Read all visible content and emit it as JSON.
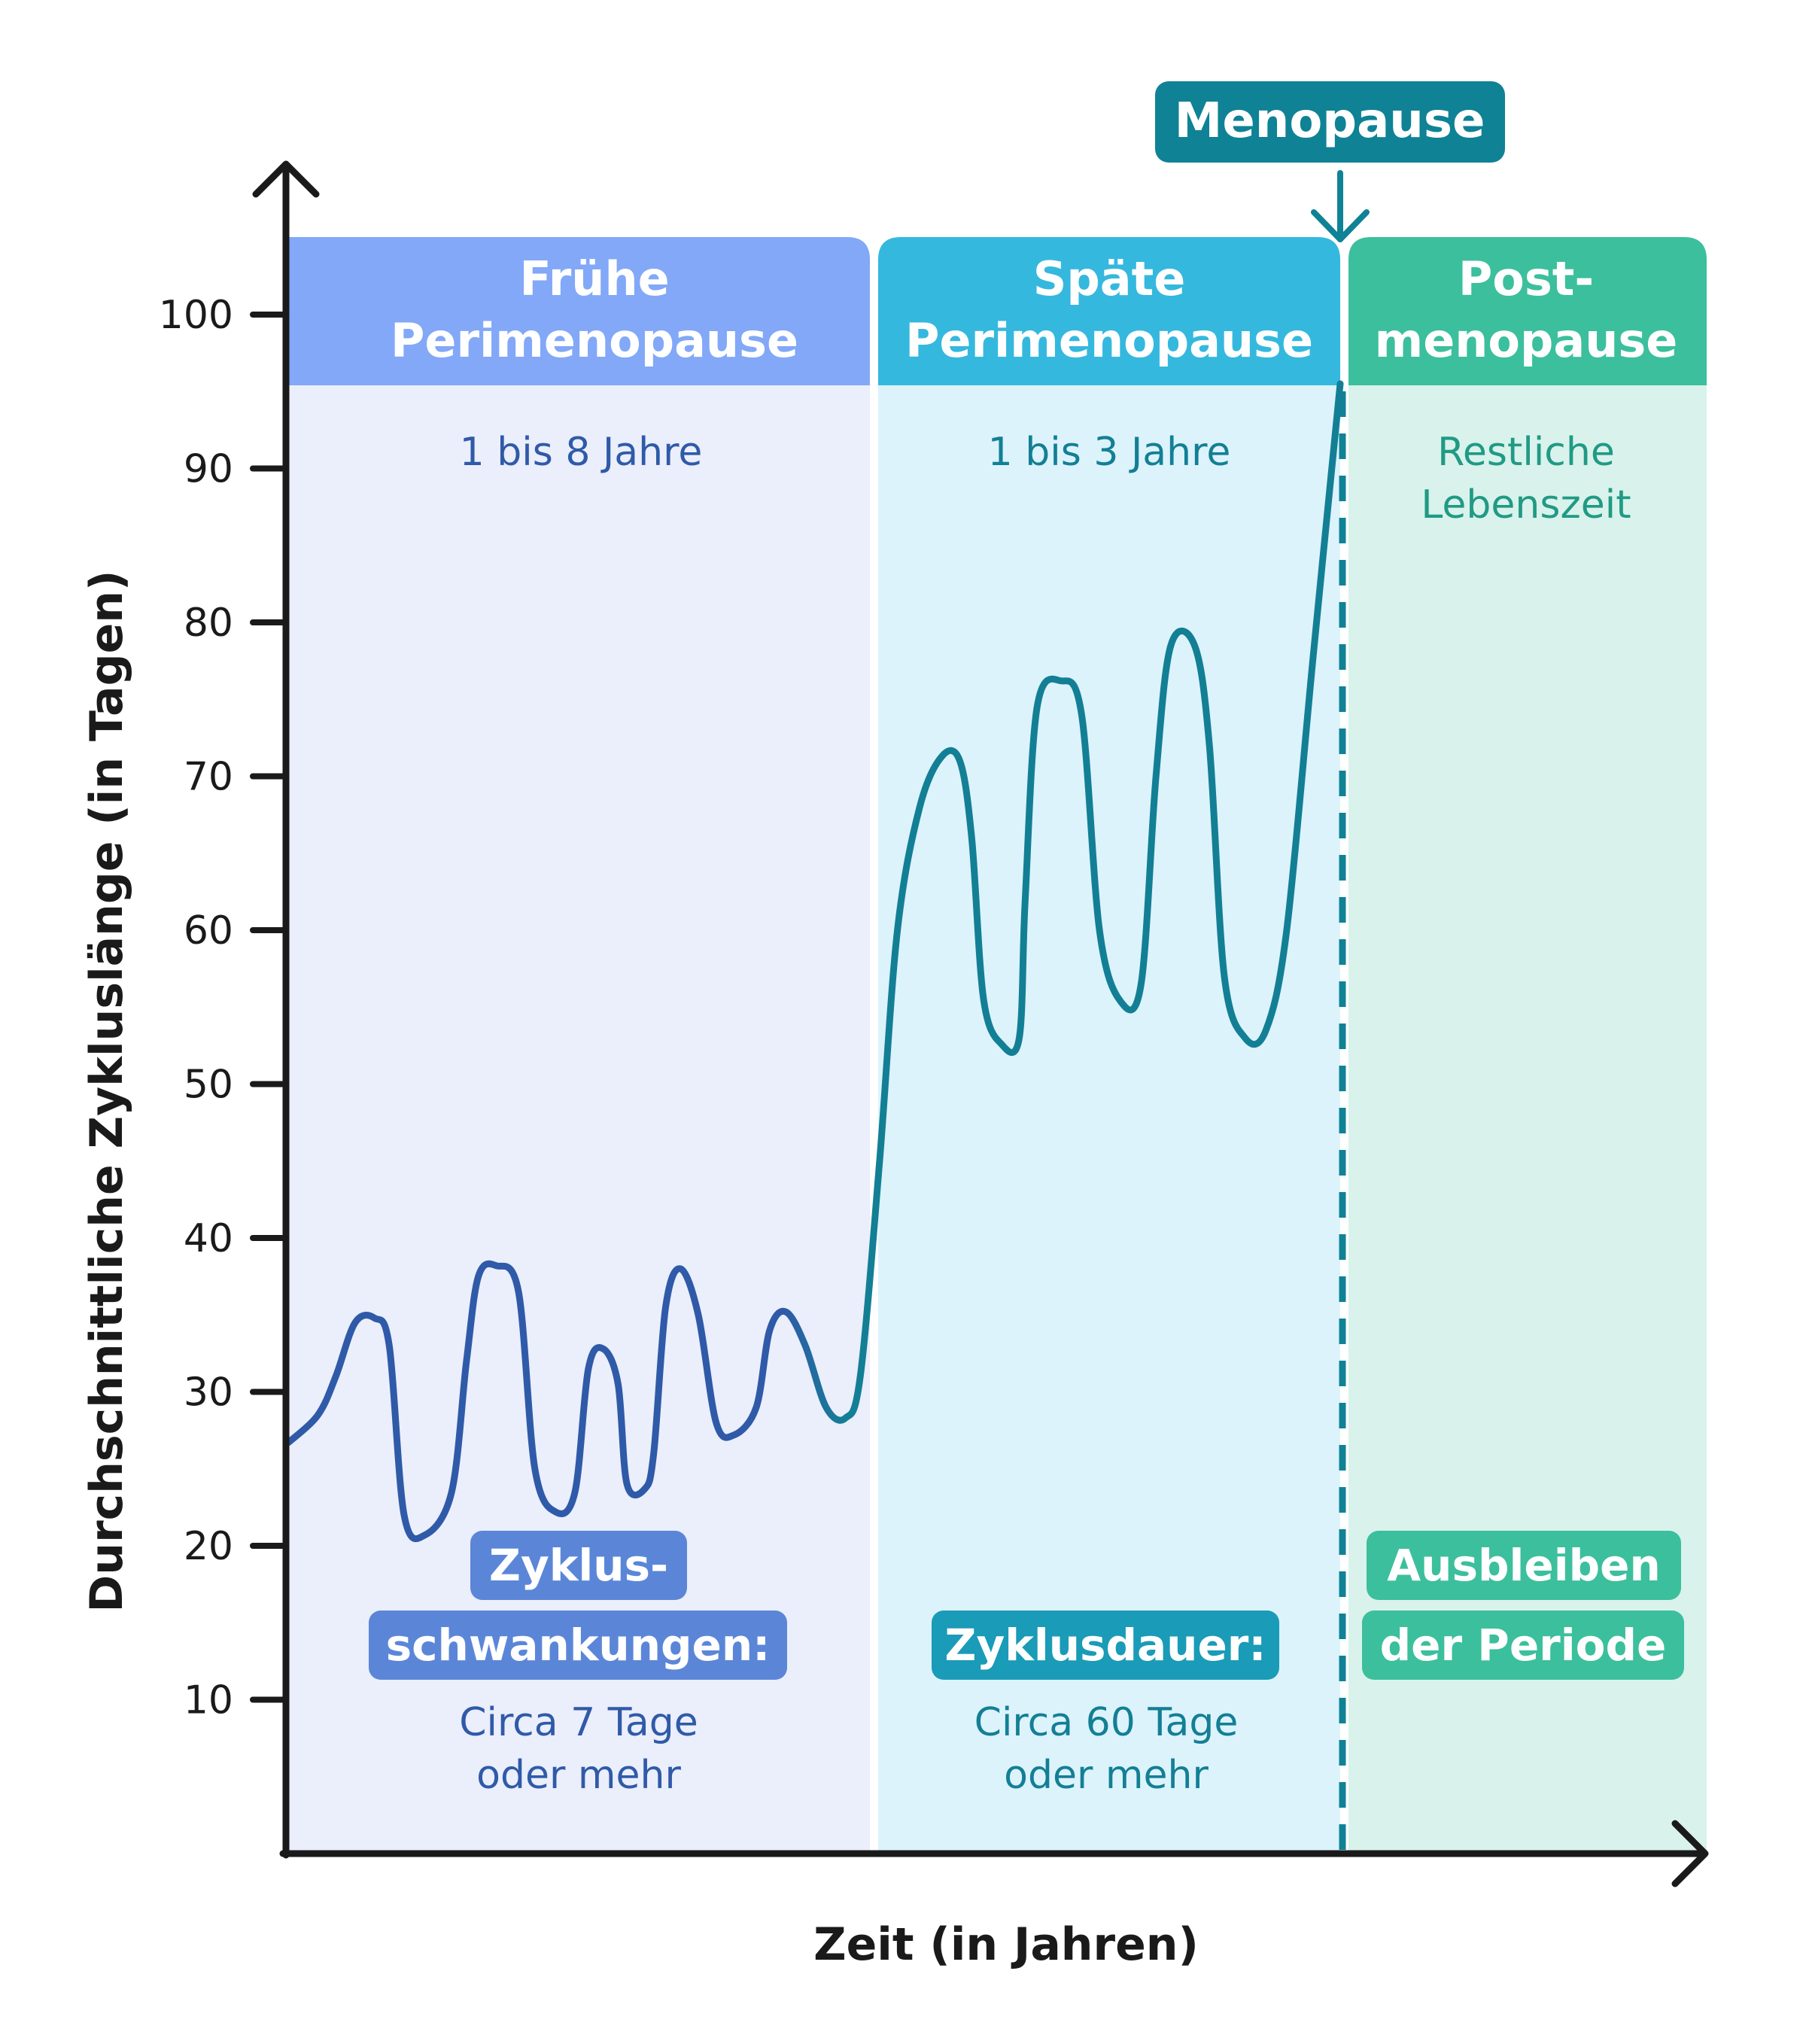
{
  "chart_data": {
    "type": "line",
    "title": "",
    "xlabel": "Zeit (in Jahren)",
    "ylabel": "Durchschnittliche Zykluslänge (in Tagen)",
    "ylim": [
      0,
      100
    ],
    "y_ticks": [
      "10",
      "20",
      "30",
      "40",
      "50",
      "60",
      "70",
      "80",
      "90",
      "100"
    ],
    "grid": false,
    "phases": [
      {
        "name_line1": "Frühe",
        "name_line2": "Perimenopause",
        "duration": "1 bis 8 Jahre",
        "badge_line1": "Zyklus-",
        "badge_line2": "schwankungen:",
        "note_line1": "Circa 7 Tage",
        "note_line2": "oder mehr",
        "header_color": "#82a8f7",
        "bg_color": "#ebeefb",
        "text_color": "#2f5aa8",
        "badge_color": "#5b86d8"
      },
      {
        "name_line1": "Späte",
        "name_line2": "Perimenopause",
        "duration": "1 bis 3 Jahre",
        "badge_line1": "",
        "badge_line2": "Zyklusdauer:",
        "note_line1": "Circa 60 Tage",
        "note_line2": "oder mehr",
        "header_color": "#35b8de",
        "bg_color": "#dcf3fb",
        "text_color": "#137f95",
        "badge_color": "#1a9bb7"
      },
      {
        "name_line1": "Post-",
        "name_line2": "menopause",
        "duration": "Restliche",
        "duration_line2": "Lebenszeit",
        "badge_line1": "Ausbleiben",
        "badge_line2": "der Periode",
        "note_line1": "",
        "note_line2": "",
        "header_color": "#3cbf9c",
        "bg_color": "#d9f2ec",
        "text_color": "#209a84",
        "badge_color": "#3cbf9c"
      }
    ],
    "marker": {
      "label": "Menopause",
      "color": "#0f8295"
    },
    "series": [
      {
        "line_color_early": "#2f5aa8",
        "line_color_late": "#137f95",
        "points": [
          [
            0.0,
            26.7
          ],
          [
            0.02,
            28.5
          ],
          [
            0.032,
            31.0
          ],
          [
            0.045,
            34.5
          ],
          [
            0.058,
            34.8
          ],
          [
            0.068,
            33.0
          ],
          [
            0.078,
            22.0
          ],
          [
            0.092,
            20.7
          ],
          [
            0.11,
            23.5
          ],
          [
            0.12,
            32.0
          ],
          [
            0.128,
            37.5
          ],
          [
            0.14,
            38.2
          ],
          [
            0.155,
            36.5
          ],
          [
            0.166,
            25.0
          ],
          [
            0.18,
            22.2
          ],
          [
            0.193,
            23.5
          ],
          [
            0.202,
            31.5
          ],
          [
            0.212,
            32.8
          ],
          [
            0.222,
            30.5
          ],
          [
            0.228,
            24.0
          ],
          [
            0.24,
            23.7
          ],
          [
            0.246,
            26.0
          ],
          [
            0.254,
            35.5
          ],
          [
            0.264,
            38.0
          ],
          [
            0.276,
            35.0
          ],
          [
            0.288,
            28.0
          ],
          [
            0.3,
            27.2
          ],
          [
            0.315,
            29.0
          ],
          [
            0.324,
            34.0
          ],
          [
            0.335,
            35.2
          ],
          [
            0.348,
            33.0
          ],
          [
            0.362,
            29.0
          ],
          [
            0.375,
            28.3
          ],
          [
            0.385,
            31.0
          ],
          [
            0.398,
            45.0
          ],
          [
            0.41,
            60.0
          ],
          [
            0.425,
            68.0
          ],
          [
            0.44,
            71.3
          ],
          [
            0.452,
            71.0
          ],
          [
            0.46,
            66.0
          ],
          [
            0.468,
            55.5
          ],
          [
            0.48,
            52.6
          ],
          [
            0.492,
            53.0
          ],
          [
            0.496,
            62.0
          ],
          [
            0.504,
            74.5
          ],
          [
            0.52,
            76.2
          ],
          [
            0.534,
            74.0
          ],
          [
            0.546,
            60.0
          ],
          [
            0.56,
            55.4
          ],
          [
            0.574,
            56.5
          ],
          [
            0.584,
            70.0
          ],
          [
            0.594,
            78.5
          ],
          [
            0.61,
            78.5
          ],
          [
            0.62,
            72.0
          ],
          [
            0.63,
            57.0
          ],
          [
            0.644,
            53.0
          ],
          [
            0.658,
            53.5
          ],
          [
            0.672,
            60.0
          ],
          [
            0.69,
            78.0
          ],
          [
            0.708,
            95.5
          ]
        ]
      }
    ]
  }
}
